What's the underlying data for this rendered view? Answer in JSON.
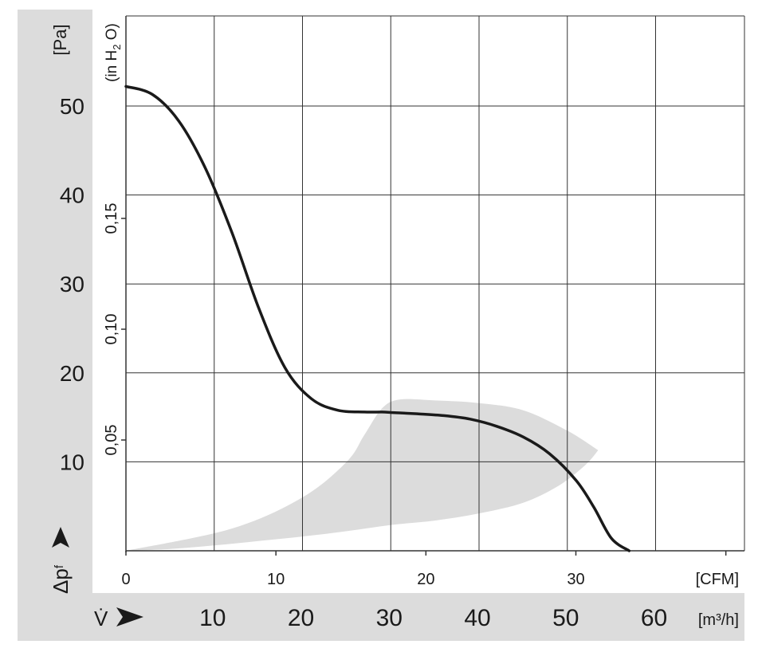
{
  "chart_data": {
    "type": "line",
    "ylabel_pa_unit": "[Pa]",
    "ylabel_symbol": "Δp",
    "ylabel_subscript": "f",
    "ylabel_inh2o_prefix": "(in H",
    "ylabel_inh2o_sub": "2",
    "ylabel_inh2o_suffix": " O)",
    "xlabel_symbol": "V̇",
    "cfm_unit": "[CFM]",
    "m3h_unit": "[m³/h]",
    "colors": {
      "curve": "#1a1a1a",
      "band": "#dcdcdc",
      "grid": "#333333"
    },
    "pa_ticks": [
      10,
      20,
      30,
      40,
      50
    ],
    "pa_tick_labels": [
      "10",
      "20",
      "30",
      "40",
      "50"
    ],
    "inh2o_ticks": [
      0.05,
      0.1,
      0.15
    ],
    "inh2o_tick_labels": [
      "0,05",
      "0,10",
      "0,15"
    ],
    "cfm_ticks": [
      0,
      10,
      20,
      30
    ],
    "cfm_tick_labels": [
      "0",
      "10",
      "20",
      "30"
    ],
    "m3h_ticks": [
      10,
      20,
      30,
      40,
      50,
      60
    ],
    "m3h_tick_labels": [
      "10",
      "20",
      "30",
      "40",
      "50",
      "60"
    ],
    "xlim_m3h": [
      0,
      70
    ],
    "ylim_pa": [
      0,
      55
    ],
    "curve": {
      "x_m3h": [
        0,
        3,
        6,
        9,
        12,
        15,
        18,
        21,
        24,
        27,
        29,
        30,
        31,
        33,
        36,
        39,
        42,
        45,
        48,
        51,
        53,
        55,
        57,
        59
      ],
      "y_pa": [
        52.2,
        51.3,
        48.3,
        43.0,
        35.8,
        27.4,
        20.6,
        17.1,
        15.8,
        15.6,
        15.6,
        15.55,
        15.5,
        15.4,
        15.2,
        14.8,
        14.0,
        12.8,
        10.9,
        7.9,
        4.9,
        1.4,
        0,
        0
      ]
    },
    "band_upper": {
      "x_m3h": [
        0,
        12,
        20,
        25,
        27,
        29,
        31,
        35,
        40,
        45,
        50,
        53.5
      ],
      "y_pa": [
        0,
        2.5,
        6.0,
        10.0,
        13.0,
        16.0,
        17.0,
        16.9,
        16.6,
        15.8,
        13.5,
        11.3
      ]
    },
    "band_lower": {
      "x_m3h": [
        53.5,
        52,
        49,
        45,
        40,
        35,
        30,
        25,
        20,
        15,
        10,
        5,
        0
      ],
      "y_pa": [
        11.3,
        9.6,
        7.3,
        5.4,
        4.2,
        3.4,
        2.9,
        2.2,
        1.6,
        1.1,
        0.6,
        0.2,
        0
      ]
    },
    "grid": true
  }
}
